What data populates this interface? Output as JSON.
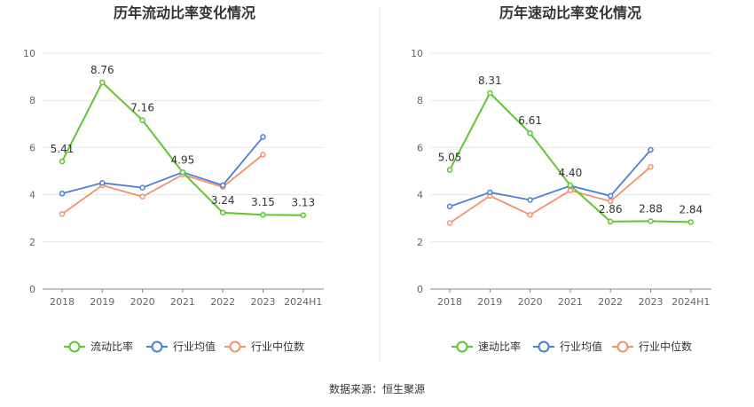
{
  "colors": {
    "main": "#5ec72c",
    "avg": "#4a7fd9",
    "median": "#f4916b"
  },
  "source": "数据来源：恒生聚源",
  "chart_data": [
    {
      "type": "line",
      "title": "历年流动比率变化情况",
      "categories": [
        "2018",
        "2019",
        "2020",
        "2021",
        "2022",
        "2023",
        "2024H1"
      ],
      "ylim": [
        0,
        10
      ],
      "yticks": [
        "0",
        "2",
        "4",
        "6",
        "8",
        "10"
      ],
      "legend_position": "bottom",
      "series": [
        {
          "name": "流动比率",
          "values": [
            5.41,
            8.76,
            7.16,
            4.95,
            3.24,
            3.15,
            3.13
          ],
          "labels": [
            "5.41",
            "8.76",
            "7.16",
            "4.95",
            "3.24",
            "3.15",
            "3.13"
          ]
        },
        {
          "name": "行业均值",
          "values": [
            4.05,
            4.5,
            4.3,
            4.95,
            4.4,
            6.45,
            null
          ]
        },
        {
          "name": "行业中位数",
          "values": [
            3.18,
            4.4,
            3.92,
            4.85,
            4.33,
            5.7,
            null
          ]
        }
      ]
    },
    {
      "type": "line",
      "title": "历年速动比率变化情况",
      "categories": [
        "2018",
        "2019",
        "2020",
        "2021",
        "2022",
        "2023",
        "2024H1"
      ],
      "ylim": [
        0,
        10
      ],
      "yticks": [
        "0",
        "2",
        "4",
        "6",
        "8",
        "10"
      ],
      "legend_position": "bottom",
      "series": [
        {
          "name": "速动比率",
          "values": [
            5.05,
            8.31,
            6.61,
            4.4,
            2.86,
            2.88,
            2.84
          ],
          "labels": [
            "5.05",
            "8.31",
            "6.61",
            "4.40",
            "2.86",
            "2.88",
            "2.84"
          ]
        },
        {
          "name": "行业均值",
          "values": [
            3.5,
            4.1,
            3.78,
            4.38,
            3.95,
            5.9,
            null
          ]
        },
        {
          "name": "行业中位数",
          "values": [
            2.8,
            3.95,
            3.15,
            4.18,
            3.72,
            5.18,
            null
          ]
        }
      ]
    }
  ]
}
